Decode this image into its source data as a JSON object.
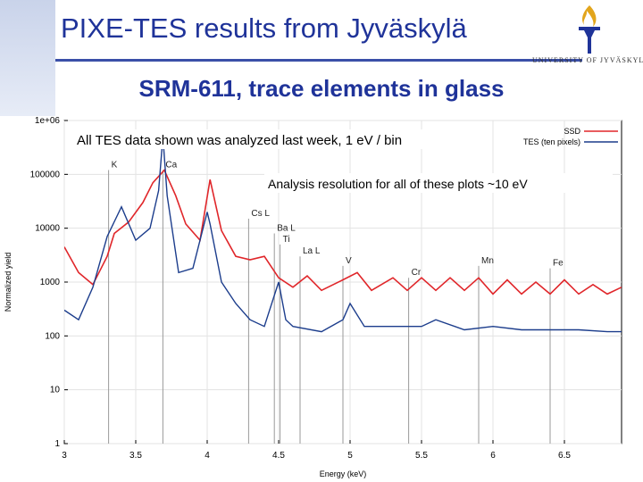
{
  "slide": {
    "title": "PIXE-TES  results from Jyväskylä",
    "subtitle": "SRM-611, trace elements in glass",
    "logo_text": "UNIVERSITY OF JYVÄSKYLÄ",
    "accent_color": "#1f3399",
    "logo_color": "#e2a51c"
  },
  "chart_data": {
    "type": "line",
    "title": "",
    "xlabel": "Energy (keV)",
    "ylabel": "Normalized yield",
    "xlim": [
      3,
      6.9
    ],
    "ylim": [
      1,
      1000000
    ],
    "yscale": "log",
    "x_ticks": [
      3,
      3.5,
      4,
      4.5,
      5,
      5.5,
      6,
      6.5
    ],
    "y_ticks": [
      {
        "value": 1000000,
        "label": "1e+06"
      },
      {
        "value": 100000,
        "label": "100000"
      },
      {
        "value": 10000,
        "label": "10000"
      },
      {
        "value": 1000,
        "label": "1000"
      },
      {
        "value": 100,
        "label": "100"
      },
      {
        "value": 10,
        "label": "10"
      },
      {
        "value": 1,
        "label": "1"
      }
    ],
    "legend": {
      "placement": "top-right"
    },
    "series": [
      {
        "name": "SSD",
        "color": "#e0262a",
        "x": [
          3.0,
          3.1,
          3.2,
          3.3,
          3.35,
          3.45,
          3.55,
          3.62,
          3.7,
          3.78,
          3.85,
          3.95,
          4.02,
          4.1,
          4.2,
          4.3,
          4.4,
          4.5,
          4.6,
          4.7,
          4.8,
          4.95,
          5.05,
          5.15,
          5.3,
          5.4,
          5.5,
          5.6,
          5.7,
          5.8,
          5.9,
          6.0,
          6.1,
          6.2,
          6.3,
          6.4,
          6.5,
          6.6,
          6.7,
          6.8,
          6.9
        ],
        "y": [
          4500,
          1500,
          900,
          3000,
          8000,
          13000,
          30000,
          70000,
          120000,
          40000,
          12000,
          6000,
          80000,
          9000,
          3000,
          2600,
          3000,
          1200,
          800,
          1300,
          700,
          1100,
          1500,
          700,
          1200,
          700,
          1200,
          700,
          1200,
          700,
          1200,
          600,
          1100,
          600,
          1000,
          600,
          1100,
          600,
          900,
          600,
          800
        ]
      },
      {
        "name": "TES (ten pixels)",
        "color": "#1c3d8c",
        "x": [
          3.0,
          3.1,
          3.2,
          3.3,
          3.4,
          3.5,
          3.6,
          3.66,
          3.69,
          3.72,
          3.8,
          3.9,
          4.0,
          4.02,
          4.1,
          4.2,
          4.3,
          4.4,
          4.5,
          4.55,
          4.6,
          4.8,
          4.95,
          5.0,
          5.1,
          5.3,
          5.5,
          5.6,
          5.8,
          6.0,
          6.2,
          6.4,
          6.5,
          6.6,
          6.8,
          6.9
        ],
        "y": [
          300,
          200,
          800,
          7000,
          25000,
          6000,
          10000,
          50000,
          500000,
          40000,
          1500,
          1800,
          20000,
          12000,
          1000,
          400,
          200,
          150,
          1000,
          200,
          150,
          120,
          200,
          400,
          150,
          150,
          150,
          200,
          130,
          150,
          130,
          130,
          130,
          130,
          120,
          120
        ]
      }
    ],
    "peak_labels": [
      {
        "label": "K",
        "x": 3.31,
        "y": 120000
      },
      {
        "label": "Ca",
        "x": 3.69,
        "y": 120000
      },
      {
        "label": "Cs L",
        "x": 4.29,
        "y": 15000
      },
      {
        "label": "Ba L",
        "x": 4.47,
        "y": 8000
      },
      {
        "label": "Ti",
        "x": 4.51,
        "y": 5000
      },
      {
        "label": "La L",
        "x": 4.65,
        "y": 3000
      },
      {
        "label": "V",
        "x": 4.95,
        "y": 2000
      },
      {
        "label": "Cr",
        "x": 5.41,
        "y": 1200
      },
      {
        "label": "Mn",
        "x": 5.9,
        "y": 2000
      },
      {
        "label": "Fe",
        "x": 6.4,
        "y": 1800
      }
    ],
    "annotations": [
      "All TES data shown was analyzed last week, 1 eV / bin",
      "Analysis resolution for all of these plots ~10 eV"
    ]
  }
}
